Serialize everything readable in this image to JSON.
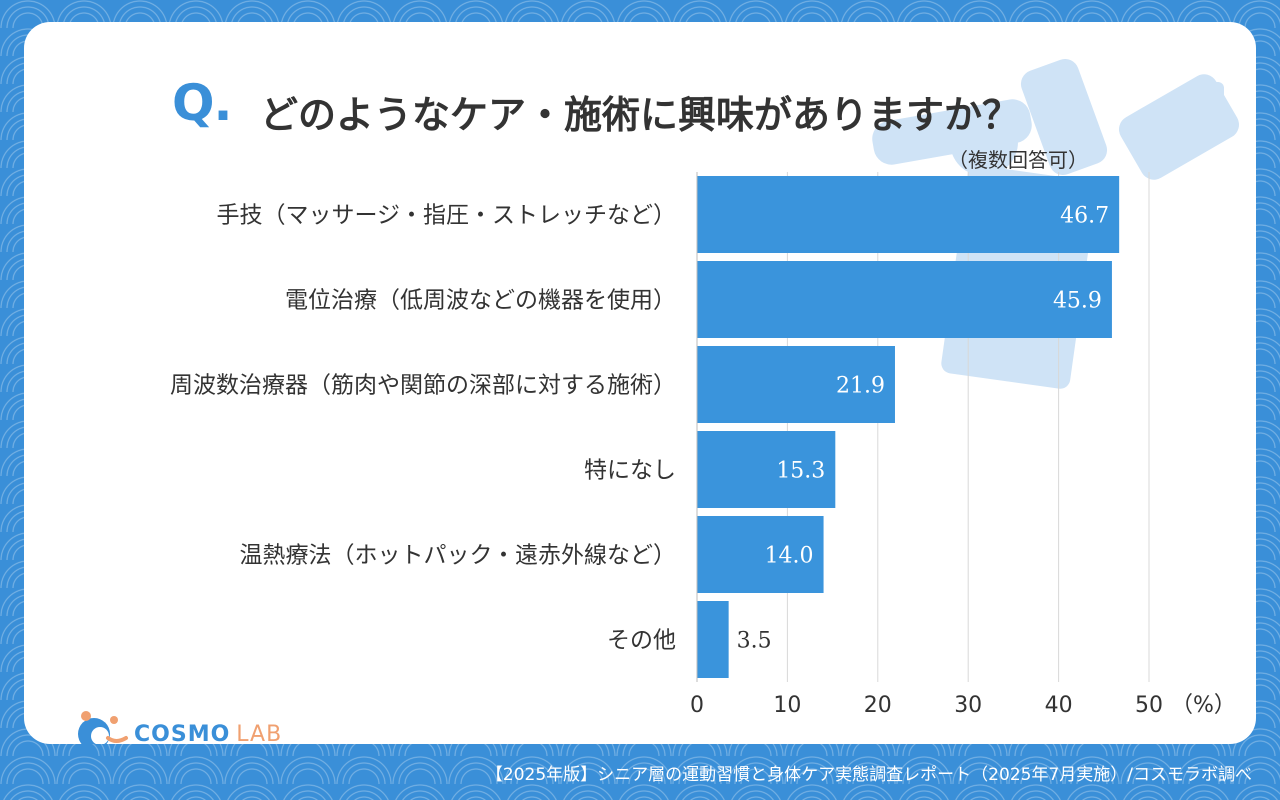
{
  "header": {
    "q_label": "Q.",
    "title": "どのようなケア・施術に興味がありますか？",
    "note": "（複数回答可）"
  },
  "chart_data": {
    "type": "bar",
    "orientation": "horizontal",
    "categories": [
      "手技（マッサージ・指圧・ストレッチなど）",
      "電位治療（低周波などの機器を使用）",
      "周波数治療器（筋肉や関節の深部に対する施術）",
      "特になし",
      "温熱療法（ホットパック・遠赤外線など）",
      "その他"
    ],
    "values": [
      46.7,
      45.9,
      21.9,
      15.3,
      14.0,
      3.5
    ],
    "value_labels": [
      "46.7",
      "45.9",
      "21.9",
      "15.3",
      "14.0",
      "3.5"
    ],
    "xticks": [
      "0",
      "10",
      "20",
      "30",
      "40",
      "50"
    ],
    "xlim": [
      0,
      50
    ],
    "unit_label": "（%）",
    "bar_color": "#3a94dc",
    "grid": true
  },
  "logo": {
    "name": "COSMO",
    "sub": "LAB"
  },
  "footer": "【2025年版】シニア層の運動習慣と身体ケア実態調査レポート（2025年7月実施）/コスモラボ調べ",
  "colors": {
    "accent": "#3a8fd8",
    "text": "#333333",
    "logo_orange": "#f0a070"
  }
}
